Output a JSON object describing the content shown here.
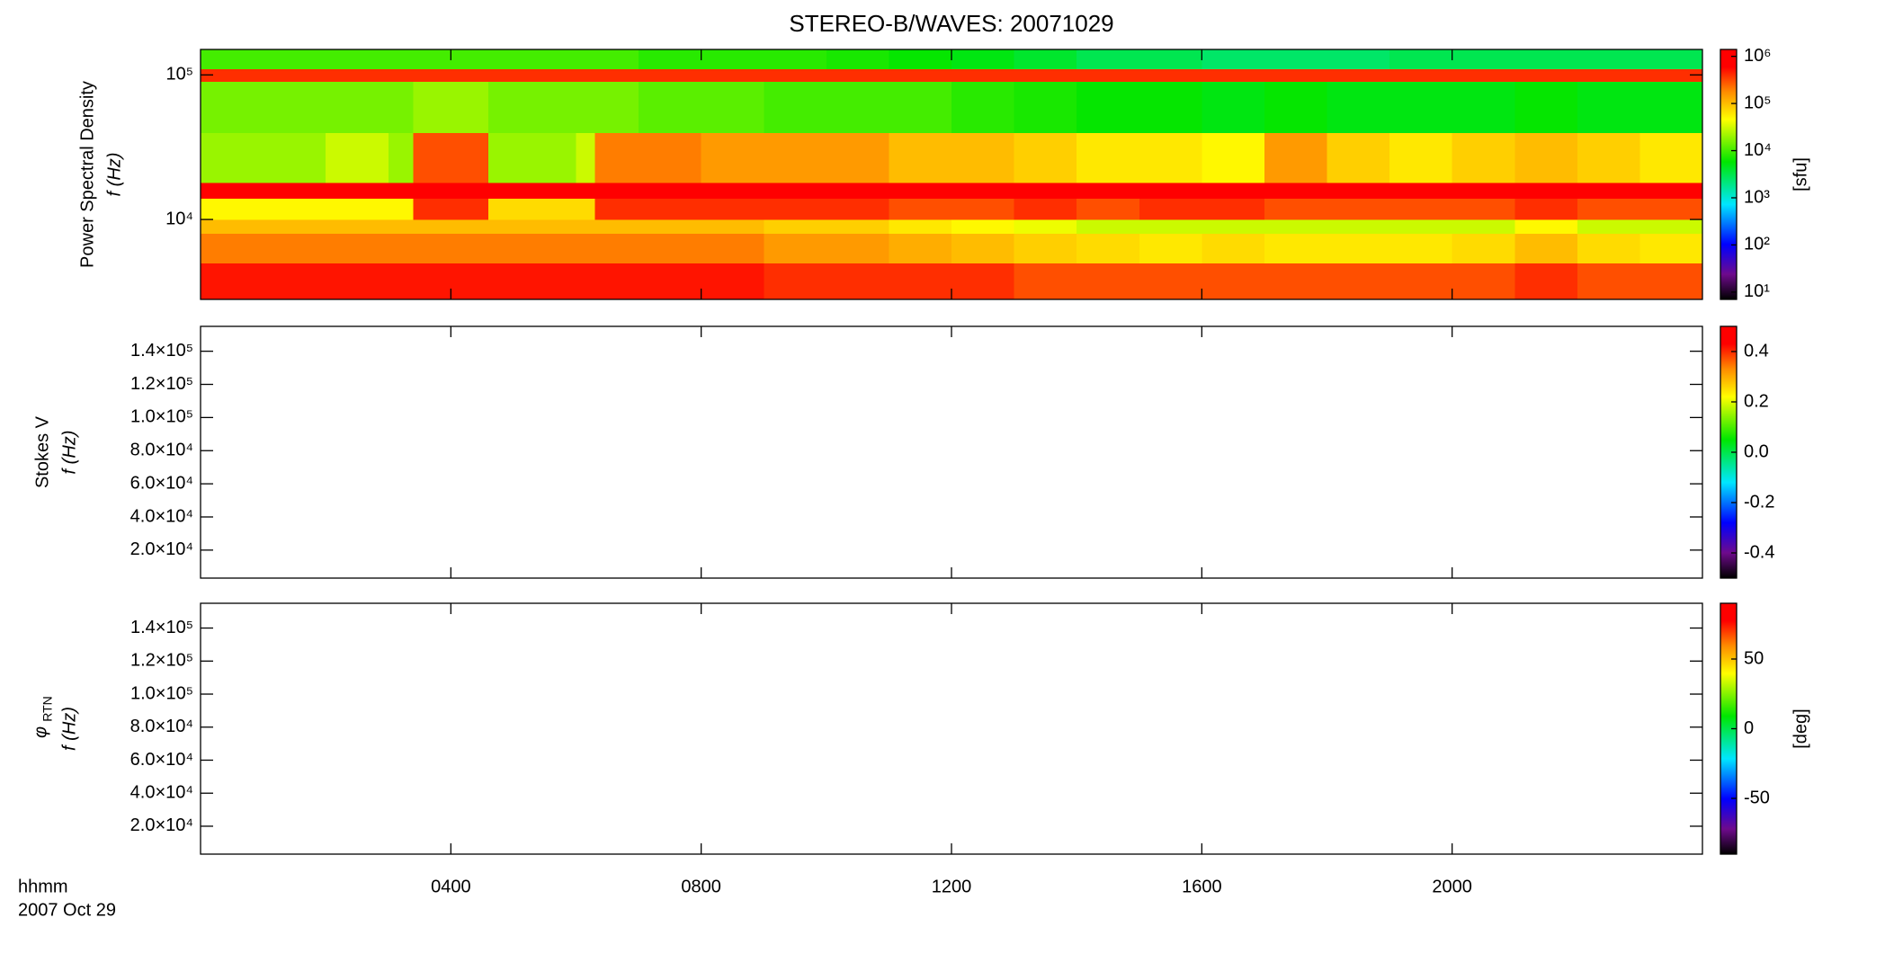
{
  "chart_data": {
    "type": "spectrogram",
    "title": "STEREO-B/WAVES: 20071029",
    "x_label": "hhmm",
    "x_date": "2007 Oct 29",
    "xlim": [
      0,
      24
    ],
    "xticks": [
      {
        "value": 4,
        "label": "0400"
      },
      {
        "value": 8,
        "label": "0800"
      },
      {
        "value": 12,
        "label": "1200"
      },
      {
        "value": 16,
        "label": "1600"
      },
      {
        "value": 20,
        "label": "2000"
      }
    ],
    "panels": [
      {
        "ylabel": [
          "Power Spectral Density",
          "f (Hz)"
        ],
        "ylog": true,
        "ylim": [
          2800,
          150000
        ],
        "yticks": [
          {
            "value": 10000,
            "label": "10⁴"
          },
          {
            "value": 100000,
            "label": "10⁵"
          }
        ],
        "colormap": "rainbow",
        "clog": true,
        "clim": [
          7,
          1400000
        ],
        "cticks": [
          {
            "value": 10,
            "label": "10¹"
          },
          {
            "value": 100,
            "label": "10²"
          },
          {
            "value": 1000,
            "label": "10³"
          },
          {
            "value": 10000,
            "label": "10⁴"
          },
          {
            "value": 100000,
            "label": "10⁵"
          },
          {
            "value": 1000000,
            "label": "10⁶"
          }
        ],
        "cunit": "[sfu]",
        "time_edges": [
          0,
          1,
          2,
          3,
          3.4,
          4,
          4.6,
          5,
          6,
          6.3,
          7,
          8,
          9,
          10,
          11,
          12,
          13,
          14,
          15,
          16,
          17,
          18,
          19,
          20,
          21,
          22,
          23,
          24
        ],
        "freq_edges": [
          2800,
          5000,
          8000,
          10000,
          14000,
          18000,
          40000,
          90000,
          110000,
          150000
        ],
        "z": [
          [
            500000.0,
            500000.0,
            500000.0,
            500000.0,
            500000.0,
            500000.0,
            500000.0,
            500000.0,
            500000.0,
            500000.0,
            500000.0,
            500000.0,
            400000.0,
            400000.0,
            400000.0,
            400000.0,
            300000.0,
            300000.0,
            300000.0,
            300000.0,
            300000.0,
            300000.0,
            300000.0,
            300000.0,
            400000.0,
            300000.0,
            300000.0
          ],
          [
            200000.0,
            200000.0,
            200000.0,
            200000.0,
            200000.0,
            200000.0,
            200000.0,
            200000.0,
            200000.0,
            200000.0,
            200000.0,
            200000.0,
            150000.0,
            150000.0,
            120000.0,
            100000.0,
            80000.0,
            70000.0,
            60000.0,
            70000.0,
            60000.0,
            60000.0,
            60000.0,
            70000.0,
            100000.0,
            70000.0,
            60000.0
          ],
          [
            100000.0,
            100000.0,
            100000.0,
            100000.0,
            100000.0,
            100000.0,
            100000.0,
            100000.0,
            100000.0,
            100000.0,
            100000.0,
            100000.0,
            80000.0,
            80000.0,
            60000.0,
            50000.0,
            40000.0,
            30000.0,
            30000.0,
            30000.0,
            30000.0,
            30000.0,
            30000.0,
            30000.0,
            50000.0,
            30000.0,
            30000.0
          ],
          [
            50000.0,
            50000.0,
            50000.0,
            50000.0,
            400000.0,
            400000.0,
            70000.0,
            70000.0,
            70000.0,
            400000.0,
            400000.0,
            400000.0,
            400000.0,
            400000.0,
            300000.0,
            300000.0,
            400000.0,
            300000.0,
            400000.0,
            400000.0,
            300000.0,
            300000.0,
            300000.0,
            300000.0,
            400000.0,
            300000.0,
            300000.0
          ],
          [
            600000.0,
            600000.0,
            600000.0,
            600000.0,
            600000.0,
            600000.0,
            600000.0,
            600000.0,
            600000.0,
            600000.0,
            600000.0,
            600000.0,
            600000.0,
            600000.0,
            600000.0,
            600000.0,
            600000.0,
            600000.0,
            600000.0,
            600000.0,
            600000.0,
            600000.0,
            600000.0,
            600000.0,
            600000.0,
            600000.0,
            600000.0
          ],
          [
            20000.0,
            20000.0,
            30000.0,
            20000.0,
            300000.0,
            300000.0,
            20000.0,
            20000.0,
            30000.0,
            200000.0,
            200000.0,
            150000.0,
            150000.0,
            150000.0,
            100000.0,
            100000.0,
            80000.0,
            60000.0,
            60000.0,
            50000.0,
            150000.0,
            80000.0,
            60000.0,
            80000.0,
            100000.0,
            80000.0,
            60000.0
          ],
          [
            15000.0,
            15000.0,
            15000.0,
            15000.0,
            20000.0,
            20000.0,
            15000.0,
            15000.0,
            15000.0,
            15000.0,
            12000.0,
            12000.0,
            10000.0,
            10000.0,
            10000.0,
            8000.0,
            7000.0,
            6000.0,
            6000.0,
            5000.0,
            6000.0,
            5000.0,
            5000.0,
            5000.0,
            6000.0,
            5000.0,
            5000.0
          ],
          [
            400000.0,
            400000.0,
            400000.0,
            400000.0,
            400000.0,
            400000.0,
            400000.0,
            400000.0,
            400000.0,
            400000.0,
            400000.0,
            400000.0,
            400000.0,
            400000.0,
            400000.0,
            400000.0,
            400000.0,
            400000.0,
            400000.0,
            400000.0,
            400000.0,
            400000.0,
            400000.0,
            400000.0,
            400000.0,
            400000.0,
            400000.0
          ],
          [
            10000.0,
            10000.0,
            10000.0,
            10000.0,
            10000.0,
            10000.0,
            10000.0,
            10000.0,
            10000.0,
            10000.0,
            8000.0,
            8000.0,
            8000.0,
            7000.0,
            6000.0,
            5000.0,
            4000.0,
            3000.0,
            3000.0,
            2500.0,
            2500.0,
            2500.0,
            3000.0,
            3000.0,
            3000.0,
            3000.0,
            3000.0
          ]
        ]
      },
      {
        "ylabel": [
          "Stokes V",
          "f (Hz)"
        ],
        "ylog": false,
        "ylim": [
          3100,
          155000
        ],
        "yticks": [
          {
            "value": 20000,
            "label": "2.0×10⁴"
          },
          {
            "value": 40000,
            "label": "4.0×10⁴"
          },
          {
            "value": 60000,
            "label": "6.0×10⁴"
          },
          {
            "value": 80000,
            "label": "8.0×10⁴"
          },
          {
            "value": 100000,
            "label": "1.0×10⁵"
          },
          {
            "value": 120000,
            "label": "1.2×10⁵"
          },
          {
            "value": 140000,
            "label": "1.4×10⁵"
          }
        ],
        "colormap": "rainbow",
        "clog": false,
        "clim": [
          -0.5,
          0.5
        ],
        "cticks": [
          -0.4,
          -0.2,
          {
            "value": 0,
            "label": "0.0"
          },
          0.2,
          0.4
        ]
      },
      {
        "ylabel_symbol": "φ",
        "ylabel_sub": "RTN",
        "ylabel": [
          "f (Hz)"
        ],
        "ylog": false,
        "ylim": [
          3100,
          155000
        ],
        "yticks": [
          {
            "value": 20000,
            "label": "2.0×10⁴"
          },
          {
            "value": 40000,
            "label": "4.0×10⁴"
          },
          {
            "value": 60000,
            "label": "6.0×10⁴"
          },
          {
            "value": 80000,
            "label": "8.0×10⁴"
          },
          {
            "value": 100000,
            "label": "1.0×10⁵"
          },
          {
            "value": 120000,
            "label": "1.2×10⁵"
          },
          {
            "value": 140000,
            "label": "1.4×10⁵"
          }
        ],
        "colormap": "rainbow",
        "clog": false,
        "clim": [
          -90,
          90
        ],
        "cticks": [
          -50,
          0,
          50
        ],
        "cunit": "[deg]"
      }
    ]
  }
}
